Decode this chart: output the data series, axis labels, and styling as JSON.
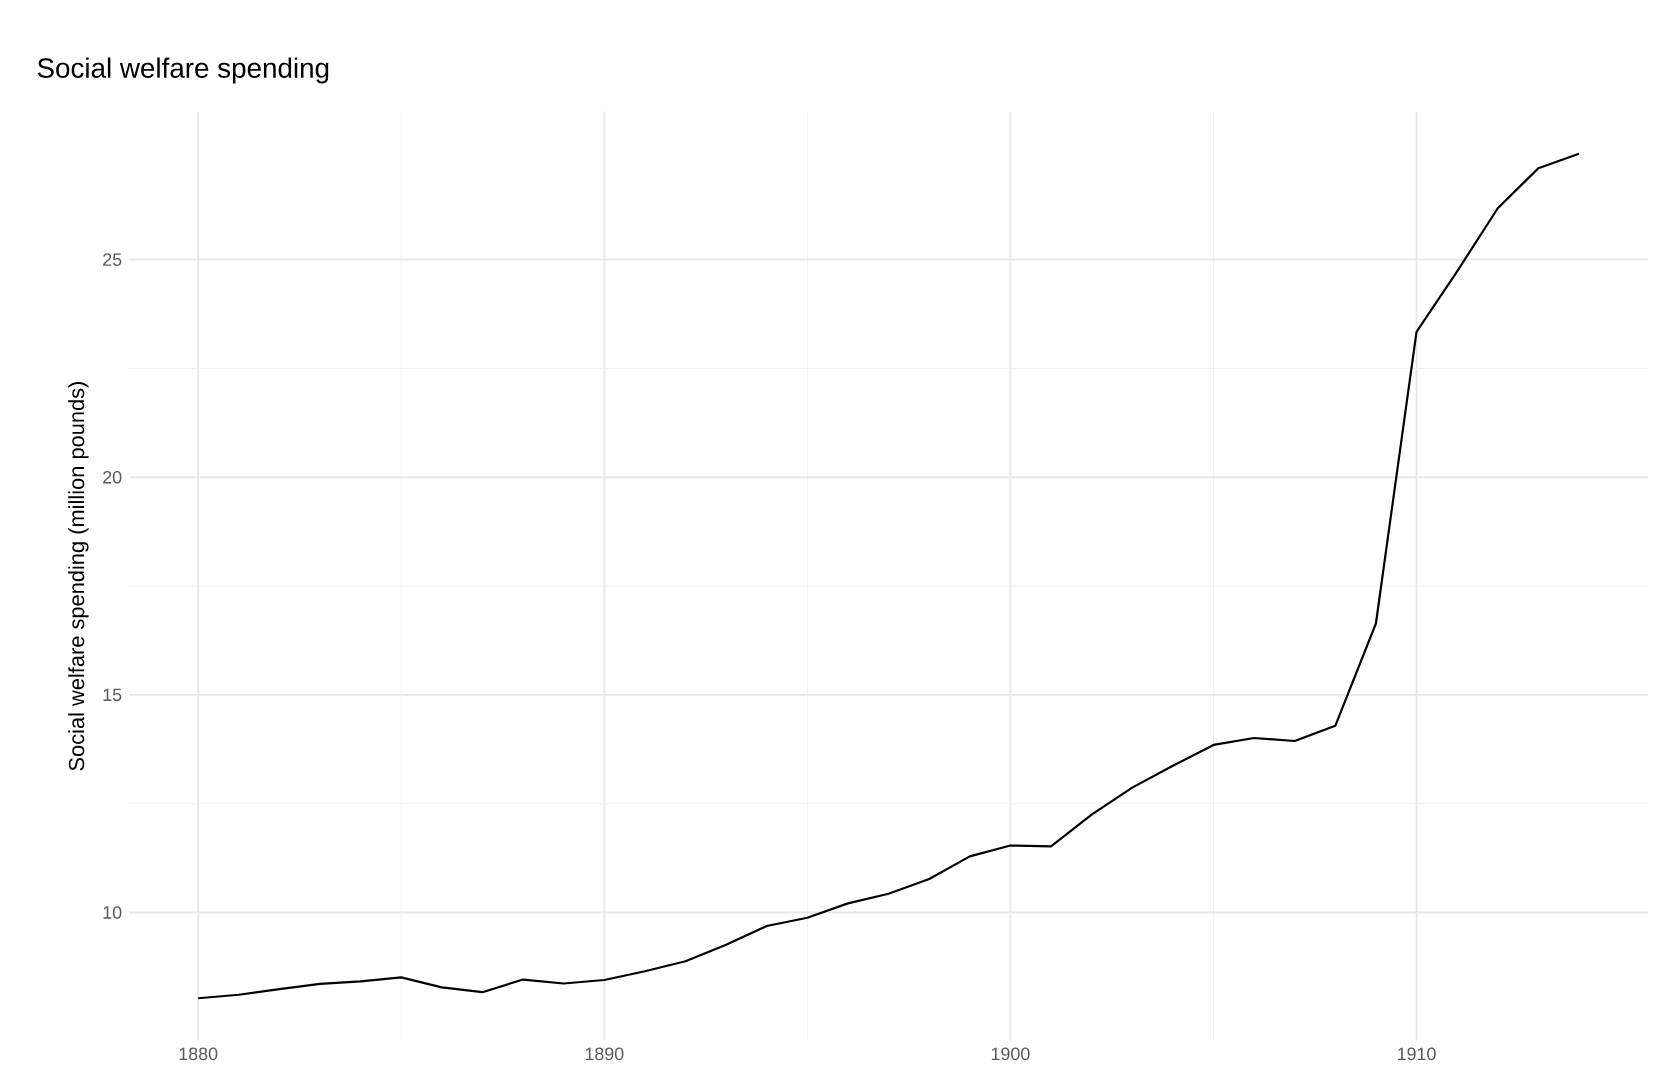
{
  "chart_data": {
    "type": "line",
    "title": "Social welfare spending",
    "ylabel": "Social welfare spending (million pounds)",
    "x": [
      1880,
      1881,
      1882,
      1883,
      1884,
      1885,
      1886,
      1887,
      1888,
      1889,
      1890,
      1891,
      1892,
      1893,
      1894,
      1895,
      1896,
      1897,
      1898,
      1899,
      1900,
      1901,
      1902,
      1903,
      1904,
      1905,
      1906,
      1907,
      1908,
      1909,
      1910,
      1911,
      1912,
      1913,
      1914
    ],
    "values": [
      8.03,
      8.11,
      8.24,
      8.36,
      8.42,
      8.51,
      8.28,
      8.17,
      8.46,
      8.37,
      8.45,
      8.65,
      8.88,
      9.26,
      9.69,
      9.88,
      10.21,
      10.43,
      10.77,
      11.29,
      11.54,
      11.52,
      12.25,
      12.87,
      13.37,
      13.85,
      14.01,
      13.94,
      14.29,
      16.64,
      23.34,
      24.73,
      26.18,
      27.1,
      27.43
    ],
    "color": "#000000",
    "xlim": [
      1878.3,
      1915.7
    ],
    "ylim": [
      7.06,
      28.4
    ],
    "xticks": [
      1880,
      1890,
      1900,
      1910
    ],
    "yticks": [
      10,
      15,
      20,
      25
    ],
    "grid": true,
    "marker": "none",
    "line_style": "solid"
  }
}
